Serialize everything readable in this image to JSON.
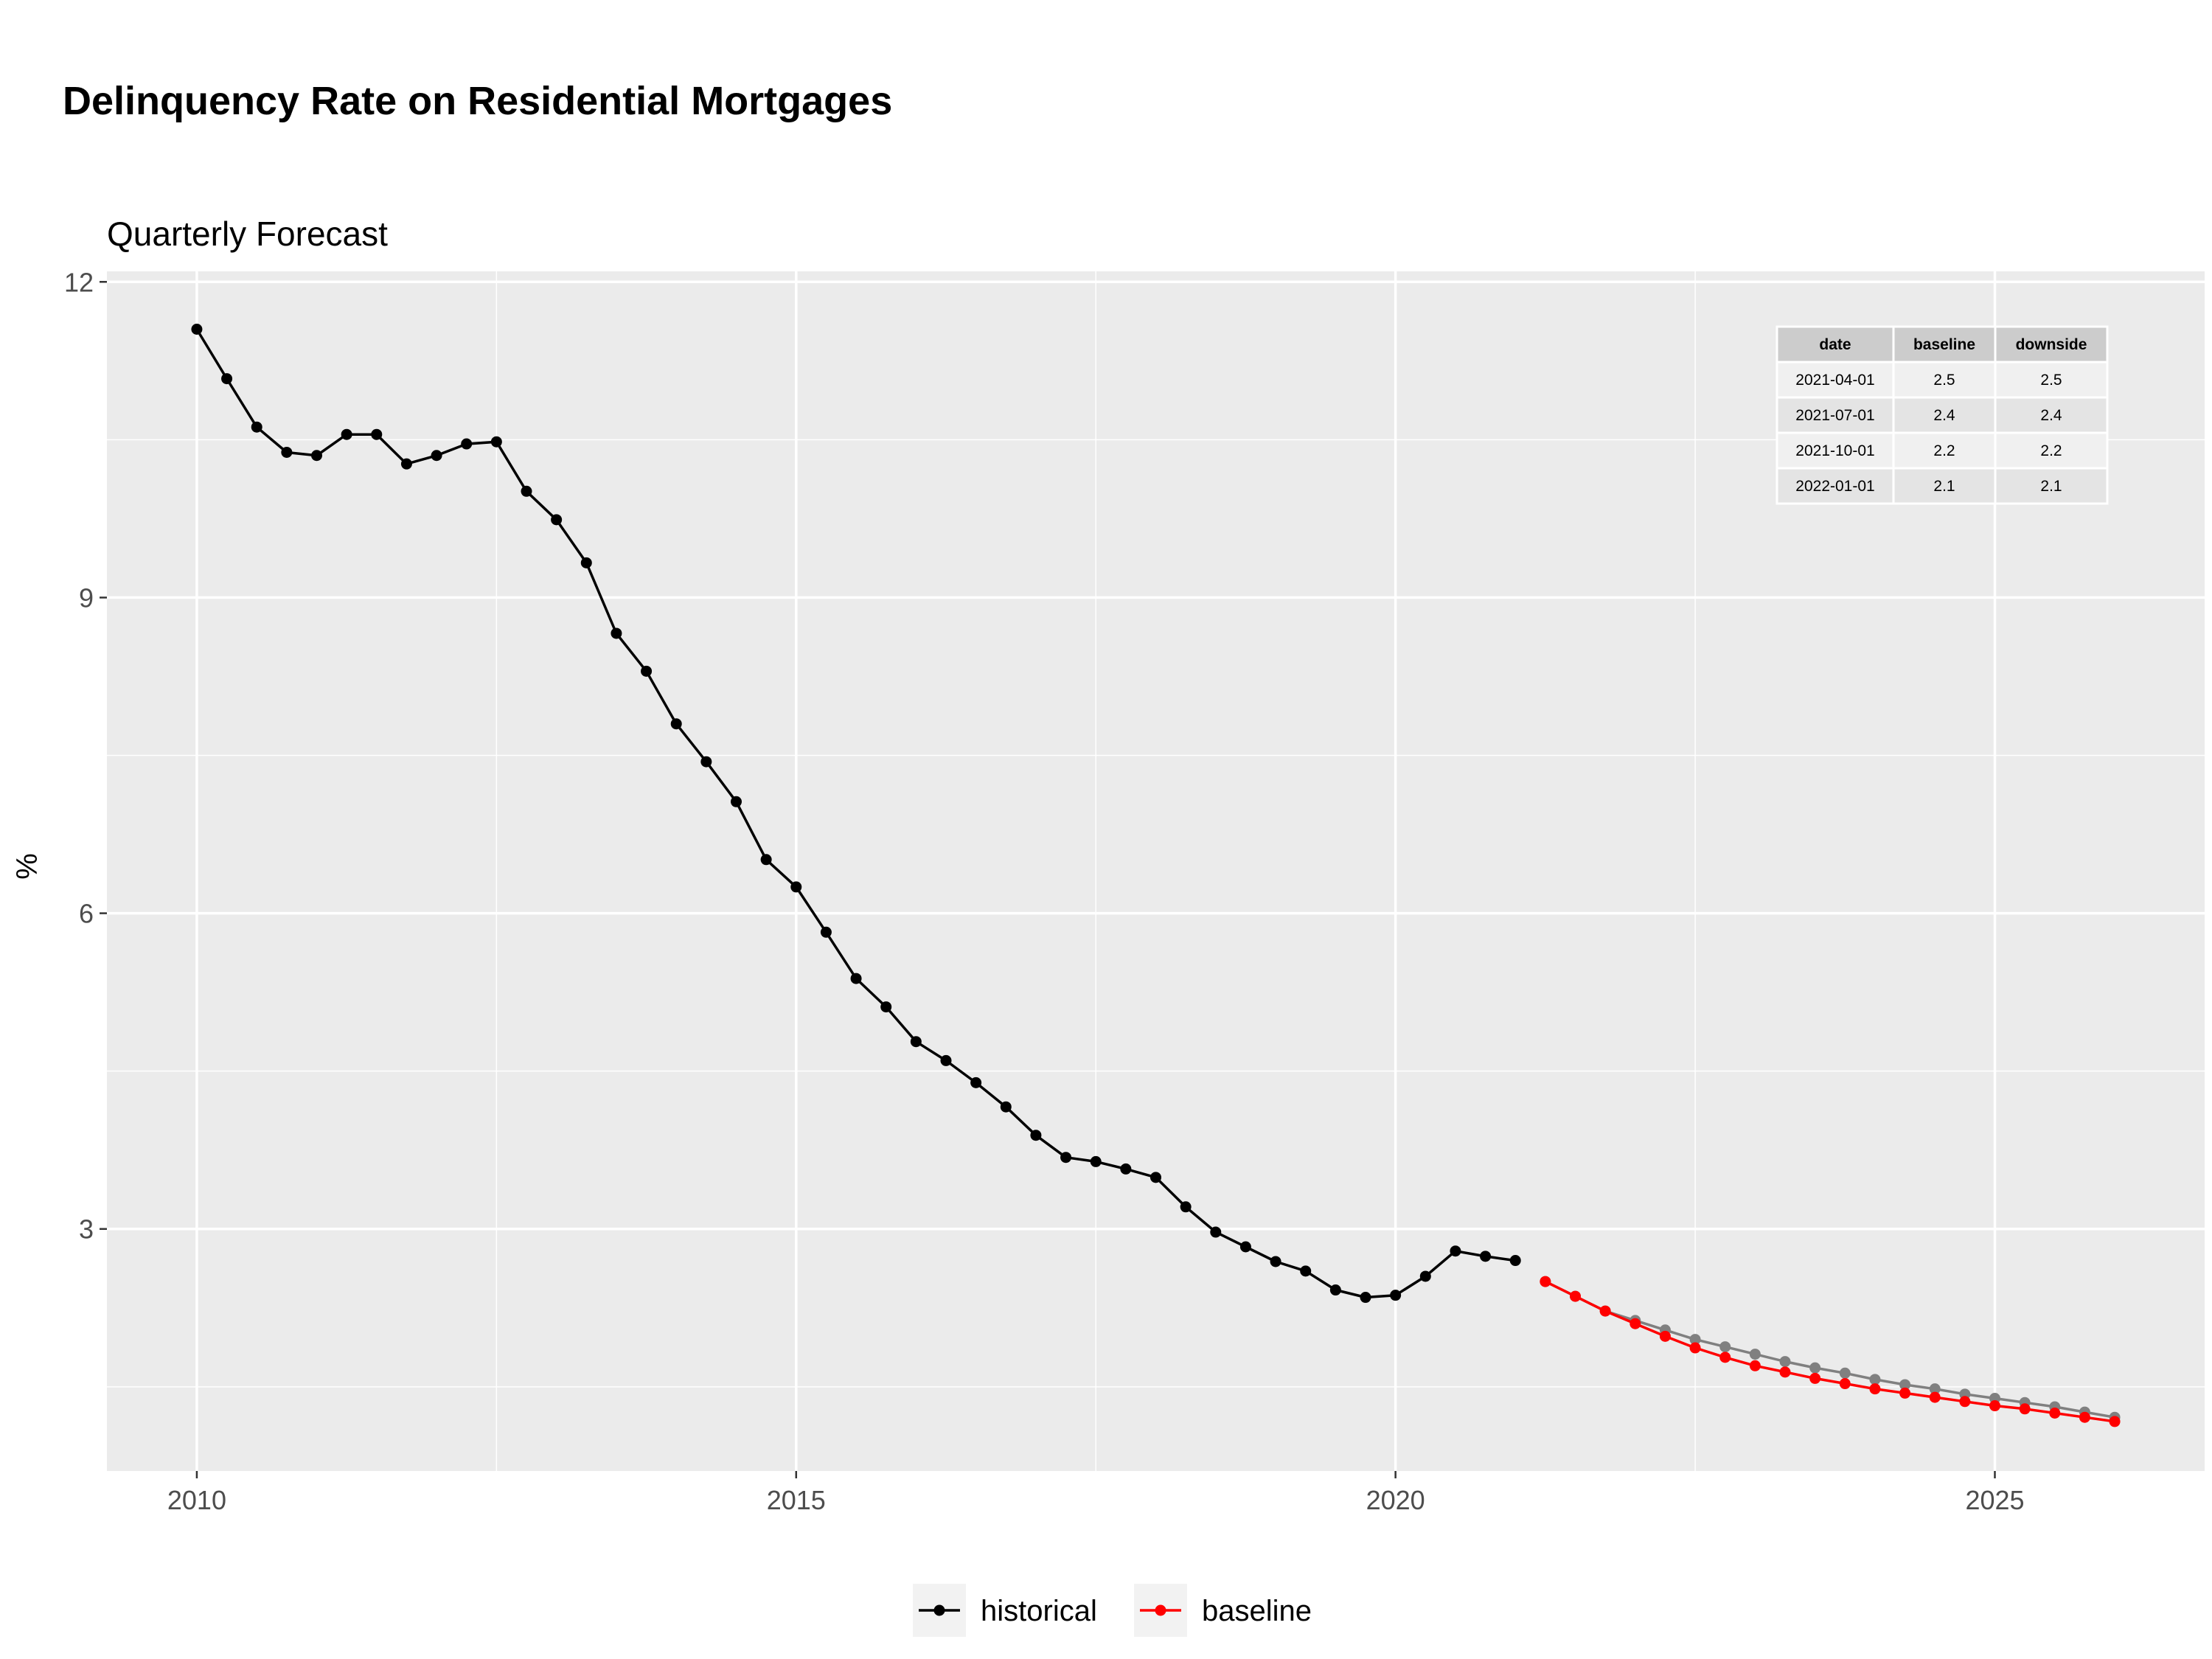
{
  "title": "Delinquency Rate on Residential Mortgages",
  "subtitle": "Quarterly Forecast",
  "colors": {
    "panel_bg": "#ebebeb",
    "grid": "#ffffff",
    "historical": "#000000",
    "baseline": "#ff0000",
    "downside": "#808080"
  },
  "chart_data": {
    "type": "line",
    "title": "Delinquency Rate on Residential Mortgages",
    "subtitle": "Quarterly Forecast",
    "xlabel": "",
    "ylabel": "%",
    "xlim": [
      "2009-04-01",
      "2026-10-01"
    ],
    "ylim": [
      0.7,
      12.1
    ],
    "x_ticks": [
      "2010",
      "2015",
      "2020",
      "2025"
    ],
    "y_ticks": [
      "3",
      "6",
      "9",
      "12"
    ],
    "grid": true,
    "legend_position": "bottom",
    "legend": [
      "historical",
      "baseline"
    ],
    "series": [
      {
        "name": "historical",
        "color": "#000000",
        "points": [
          [
            "2010-01-01",
            11.55
          ],
          [
            "2010-04-01",
            11.08
          ],
          [
            "2010-07-01",
            10.62
          ],
          [
            "2010-10-01",
            10.38
          ],
          [
            "2011-01-01",
            10.35
          ],
          [
            "2011-04-01",
            10.55
          ],
          [
            "2011-07-01",
            10.55
          ],
          [
            "2011-10-01",
            10.27
          ],
          [
            "2012-01-01",
            10.35
          ],
          [
            "2012-04-01",
            10.46
          ],
          [
            "2012-07-01",
            10.48
          ],
          [
            "2012-10-01",
            10.01
          ],
          [
            "2013-01-01",
            9.74
          ],
          [
            "2013-04-01",
            9.33
          ],
          [
            "2013-07-01",
            8.66
          ],
          [
            "2013-10-01",
            8.3
          ],
          [
            "2014-01-01",
            7.8
          ],
          [
            "2014-04-01",
            7.44
          ],
          [
            "2014-07-01",
            7.06
          ],
          [
            "2014-10-01",
            6.51
          ],
          [
            "2015-01-01",
            6.25
          ],
          [
            "2015-04-01",
            5.82
          ],
          [
            "2015-07-01",
            5.38
          ],
          [
            "2015-10-01",
            5.11
          ],
          [
            "2016-01-01",
            4.78
          ],
          [
            "2016-04-01",
            4.6
          ],
          [
            "2016-07-01",
            4.39
          ],
          [
            "2016-10-01",
            4.16
          ],
          [
            "2017-01-01",
            3.89
          ],
          [
            "2017-04-01",
            3.68
          ],
          [
            "2017-07-01",
            3.64
          ],
          [
            "2017-10-01",
            3.57
          ],
          [
            "2018-01-01",
            3.49
          ],
          [
            "2018-04-01",
            3.21
          ],
          [
            "2018-07-01",
            2.97
          ],
          [
            "2018-10-01",
            2.83
          ],
          [
            "2019-01-01",
            2.69
          ],
          [
            "2019-04-01",
            2.6
          ],
          [
            "2019-07-01",
            2.42
          ],
          [
            "2019-10-01",
            2.35
          ],
          [
            "2020-01-01",
            2.37
          ],
          [
            "2020-04-01",
            2.55
          ],
          [
            "2020-07-01",
            2.79
          ],
          [
            "2020-10-01",
            2.74
          ],
          [
            "2021-01-01",
            2.7
          ]
        ]
      },
      {
        "name": "baseline",
        "color": "#ff0000",
        "points": [
          [
            "2021-04-01",
            2.5
          ],
          [
            "2021-07-01",
            2.36
          ],
          [
            "2021-10-01",
            2.22
          ],
          [
            "2022-01-01",
            2.1
          ],
          [
            "2022-04-01",
            1.98
          ],
          [
            "2022-07-01",
            1.87
          ],
          [
            "2022-10-01",
            1.78
          ],
          [
            "2023-01-01",
            1.7
          ],
          [
            "2023-04-01",
            1.64
          ],
          [
            "2023-07-01",
            1.58
          ],
          [
            "2023-10-01",
            1.53
          ],
          [
            "2024-01-01",
            1.48
          ],
          [
            "2024-04-01",
            1.44
          ],
          [
            "2024-07-01",
            1.4
          ],
          [
            "2024-10-01",
            1.36
          ],
          [
            "2025-01-01",
            1.32
          ],
          [
            "2025-04-01",
            1.29
          ],
          [
            "2025-07-01",
            1.25
          ],
          [
            "2025-10-01",
            1.21
          ],
          [
            "2026-01-01",
            1.17
          ]
        ]
      },
      {
        "name": "downside",
        "color": "#808080",
        "points": [
          [
            "2021-04-01",
            2.5
          ],
          [
            "2021-07-01",
            2.36
          ],
          [
            "2021-10-01",
            2.22
          ],
          [
            "2022-01-01",
            2.13
          ],
          [
            "2022-04-01",
            2.04
          ],
          [
            "2022-07-01",
            1.95
          ],
          [
            "2022-10-01",
            1.88
          ],
          [
            "2023-01-01",
            1.81
          ],
          [
            "2023-04-01",
            1.74
          ],
          [
            "2023-07-01",
            1.68
          ],
          [
            "2023-10-01",
            1.63
          ],
          [
            "2024-01-01",
            1.57
          ],
          [
            "2024-04-01",
            1.52
          ],
          [
            "2024-07-01",
            1.48
          ],
          [
            "2024-10-01",
            1.43
          ],
          [
            "2025-01-01",
            1.39
          ],
          [
            "2025-04-01",
            1.35
          ],
          [
            "2025-07-01",
            1.31
          ],
          [
            "2025-10-01",
            1.26
          ],
          [
            "2026-01-01",
            1.21
          ]
        ]
      }
    ],
    "table": {
      "headers": [
        "date",
        "baseline",
        "downside"
      ],
      "rows": [
        [
          "2021-04-01",
          "2.5",
          "2.5"
        ],
        [
          "2021-07-01",
          "2.4",
          "2.4"
        ],
        [
          "2021-10-01",
          "2.2",
          "2.2"
        ],
        [
          "2022-01-01",
          "2.1",
          "2.1"
        ]
      ]
    }
  }
}
